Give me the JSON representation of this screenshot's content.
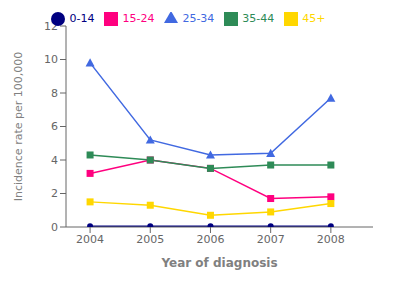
{
  "chart_data": {
    "type": "line",
    "x": [
      2004,
      2005,
      2006,
      2007,
      2008
    ],
    "series": [
      {
        "name": "0-14",
        "color": "#000080",
        "marker": "circle",
        "values": [
          0.05,
          0.05,
          0.05,
          0.05,
          0.05
        ]
      },
      {
        "name": "15-24",
        "color": "#FF007F",
        "marker": "square",
        "values": [
          3.2,
          4.0,
          3.5,
          1.7,
          1.8
        ]
      },
      {
        "name": "25-34",
        "color": "#4169E1",
        "marker": "triangle",
        "values": [
          9.8,
          5.2,
          4.3,
          4.4,
          7.7
        ]
      },
      {
        "name": "35-44",
        "color": "#2E8B57",
        "marker": "square",
        "values": [
          4.3,
          4.0,
          3.5,
          3.7,
          3.7
        ]
      },
      {
        "name": "45+",
        "color": "#FFD700",
        "marker": "square",
        "values": [
          1.5,
          1.3,
          0.7,
          0.9,
          1.4
        ]
      }
    ],
    "xlabel": "Year of diagnosis",
    "ylabel": "Incidence rate per 100,000",
    "xlim": [
      2003.6,
      2008.7
    ],
    "xticks": [
      2004,
      2005,
      2006,
      2007,
      2008
    ],
    "ylim": [
      0,
      12
    ],
    "yticks": [
      0,
      2,
      4,
      6,
      8,
      10,
      12
    ],
    "grid": false,
    "legend": "top"
  }
}
